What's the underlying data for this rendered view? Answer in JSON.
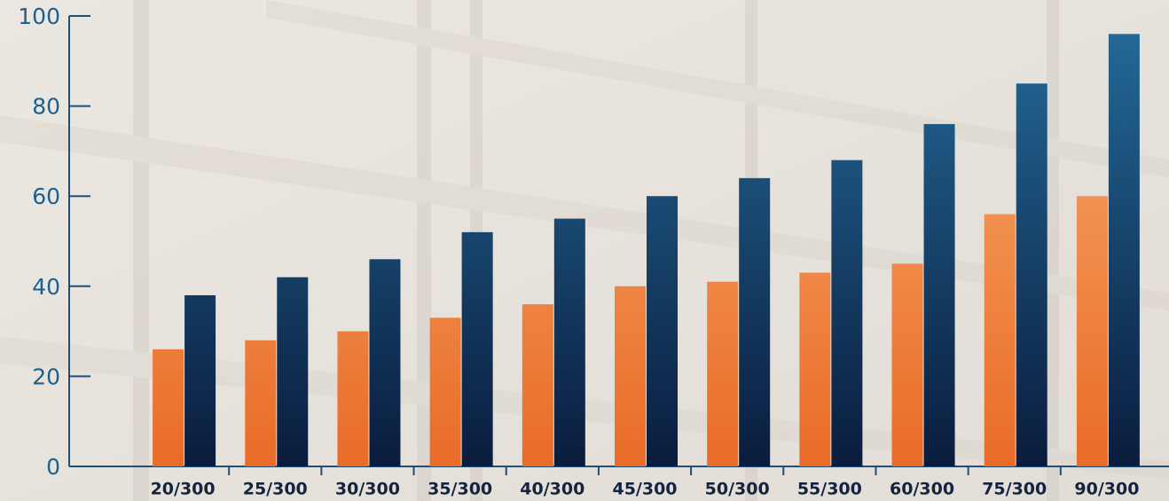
{
  "chart_data": {
    "type": "bar",
    "categories": [
      "20/300",
      "25/300",
      "30/300",
      "35/300",
      "40/300",
      "45/300",
      "50/300",
      "55/300",
      "60/300",
      "75/300",
      "90/300"
    ],
    "series": [
      {
        "gradient": [
          "#f6ad6c",
          "#ea6b28"
        ],
        "values": [
          26,
          28,
          30,
          33,
          36,
          40,
          41,
          43,
          45,
          56,
          60
        ]
      },
      {
        "gradient": [
          "#246b9a",
          "#0a1c3d"
        ],
        "values": [
          38,
          42,
          46,
          52,
          55,
          60,
          64,
          68,
          76,
          85,
          96
        ]
      }
    ],
    "ylim": [
      0,
      100
    ],
    "yticks": [
      0,
      20,
      40,
      60,
      80,
      100
    ]
  }
}
